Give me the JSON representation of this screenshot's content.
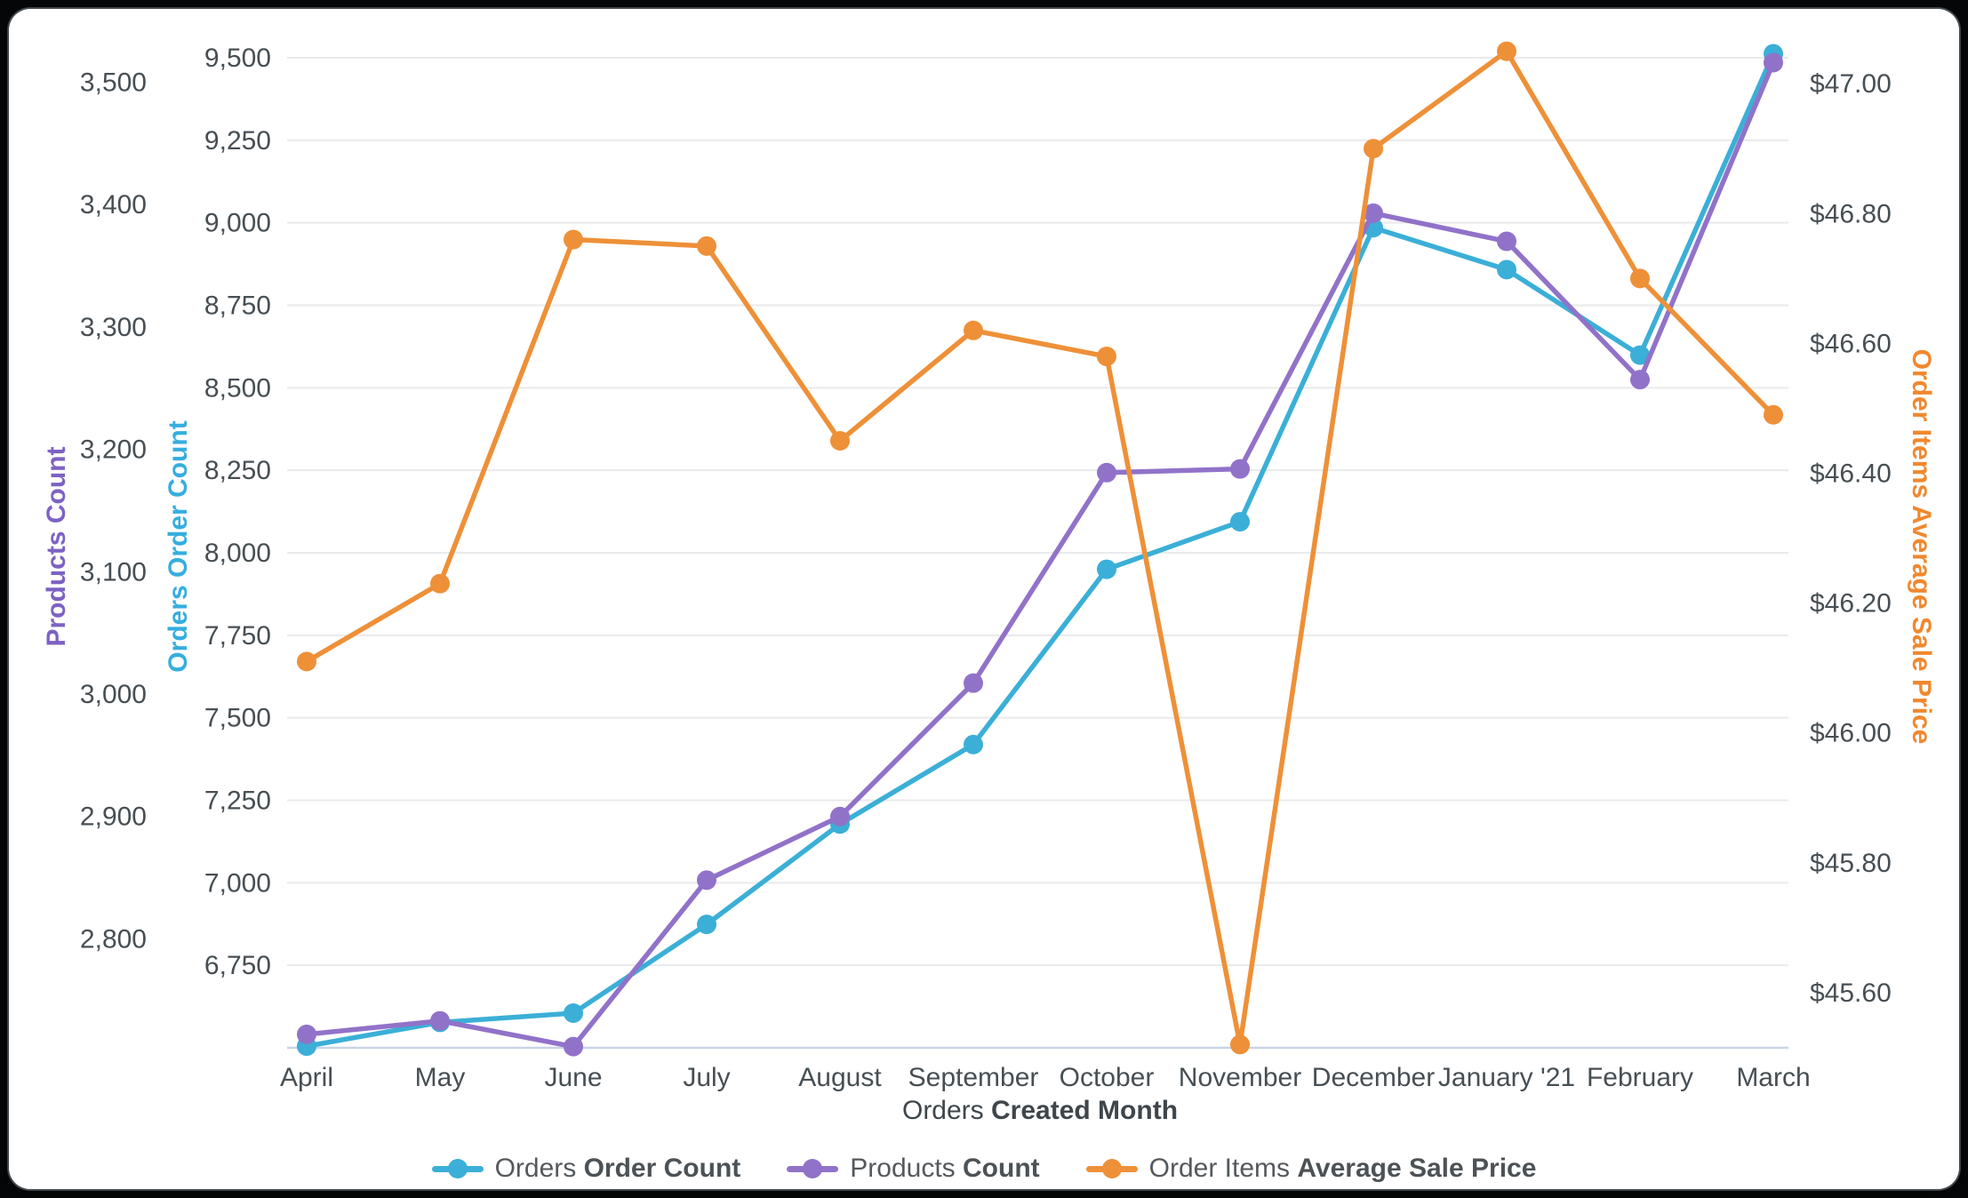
{
  "frame": {
    "background": "#060708",
    "card_background": "#ffffff",
    "grid_color": "#e9eaeb",
    "baseline_color": "#c9d5e8",
    "tick_text_color": "#474f54",
    "xtitle_text_color": "#3e464b"
  },
  "chart_data": {
    "type": "line",
    "x_axis": {
      "title_regular": "Orders",
      "title_bold": "Created Month",
      "categories": [
        "April",
        "May",
        "June",
        "July",
        "August",
        "September",
        "October",
        "November",
        "December",
        "January '21",
        "February",
        "March"
      ]
    },
    "axes": {
      "products": {
        "title": "Products Count",
        "title_color": "#7d62c3",
        "side": "left-outer",
        "min": 2711,
        "max": 3520,
        "ticks": [
          {
            "label": "3,500",
            "value": 3500
          },
          {
            "label": "3,400",
            "value": 3400
          },
          {
            "label": "3,300",
            "value": 3300
          },
          {
            "label": "3,200",
            "value": 3200
          },
          {
            "label": "3,100",
            "value": 3100
          },
          {
            "label": "3,000",
            "value": 3000
          },
          {
            "label": "2,900",
            "value": 2900
          },
          {
            "label": "2,800",
            "value": 2800
          }
        ]
      },
      "orders": {
        "title": "Orders Order Count",
        "title_color": "#36aede",
        "side": "left-inner",
        "min": 6500,
        "max": 9500,
        "gridlines": true,
        "ticks": [
          {
            "label": "9,500",
            "value": 9500
          },
          {
            "label": "9,250",
            "value": 9250
          },
          {
            "label": "9,000",
            "value": 9000
          },
          {
            "label": "8,750",
            "value": 8750
          },
          {
            "label": "8,500",
            "value": 8500
          },
          {
            "label": "8,250",
            "value": 8250
          },
          {
            "label": "8,000",
            "value": 8000
          },
          {
            "label": "7,750",
            "value": 7750
          },
          {
            "label": "7,500",
            "value": 7500
          },
          {
            "label": "7,250",
            "value": 7250
          },
          {
            "label": "7,000",
            "value": 7000
          },
          {
            "label": "6,750",
            "value": 6750
          }
        ]
      },
      "price": {
        "title": "Order Items Average Sale Price",
        "title_color": "#f0882e",
        "side": "right",
        "min": 45.515,
        "max": 47.04,
        "ticks": [
          {
            "label": "$47.00",
            "value": 47.0
          },
          {
            "label": "$46.80",
            "value": 46.8
          },
          {
            "label": "$46.60",
            "value": 46.6
          },
          {
            "label": "$46.40",
            "value": 46.4
          },
          {
            "label": "$46.20",
            "value": 46.2
          },
          {
            "label": "$46.00",
            "value": 46.0
          },
          {
            "label": "$45.80",
            "value": 45.8
          },
          {
            "label": "$45.60",
            "value": 45.6
          }
        ]
      }
    },
    "series": [
      {
        "id": "orders-order-count",
        "label_regular": "Orders",
        "label_bold": "Order Count",
        "color": "#3bafd7",
        "axis": "orders",
        "values": [
          6505,
          6577,
          6605,
          6874,
          7178,
          7419,
          7950,
          8094,
          8985,
          8858,
          8599,
          9512
        ]
      },
      {
        "id": "products-count",
        "label_regular": "Products",
        "label_bold": "Count",
        "color": "#9172c9",
        "axis": "products",
        "values": [
          2722,
          2733,
          2712,
          2848,
          2900,
          3009,
          3181,
          3184,
          3393,
          3370,
          3257,
          3516
        ]
      },
      {
        "id": "order-items-average-sale-price",
        "label_regular": "Order Items",
        "label_bold": "Average Sale Price",
        "color": "#ee9038",
        "axis": "price",
        "values": [
          46.11,
          46.23,
          46.76,
          46.75,
          46.45,
          46.62,
          46.58,
          45.52,
          46.9,
          47.05,
          46.7,
          46.49
        ]
      }
    ]
  }
}
